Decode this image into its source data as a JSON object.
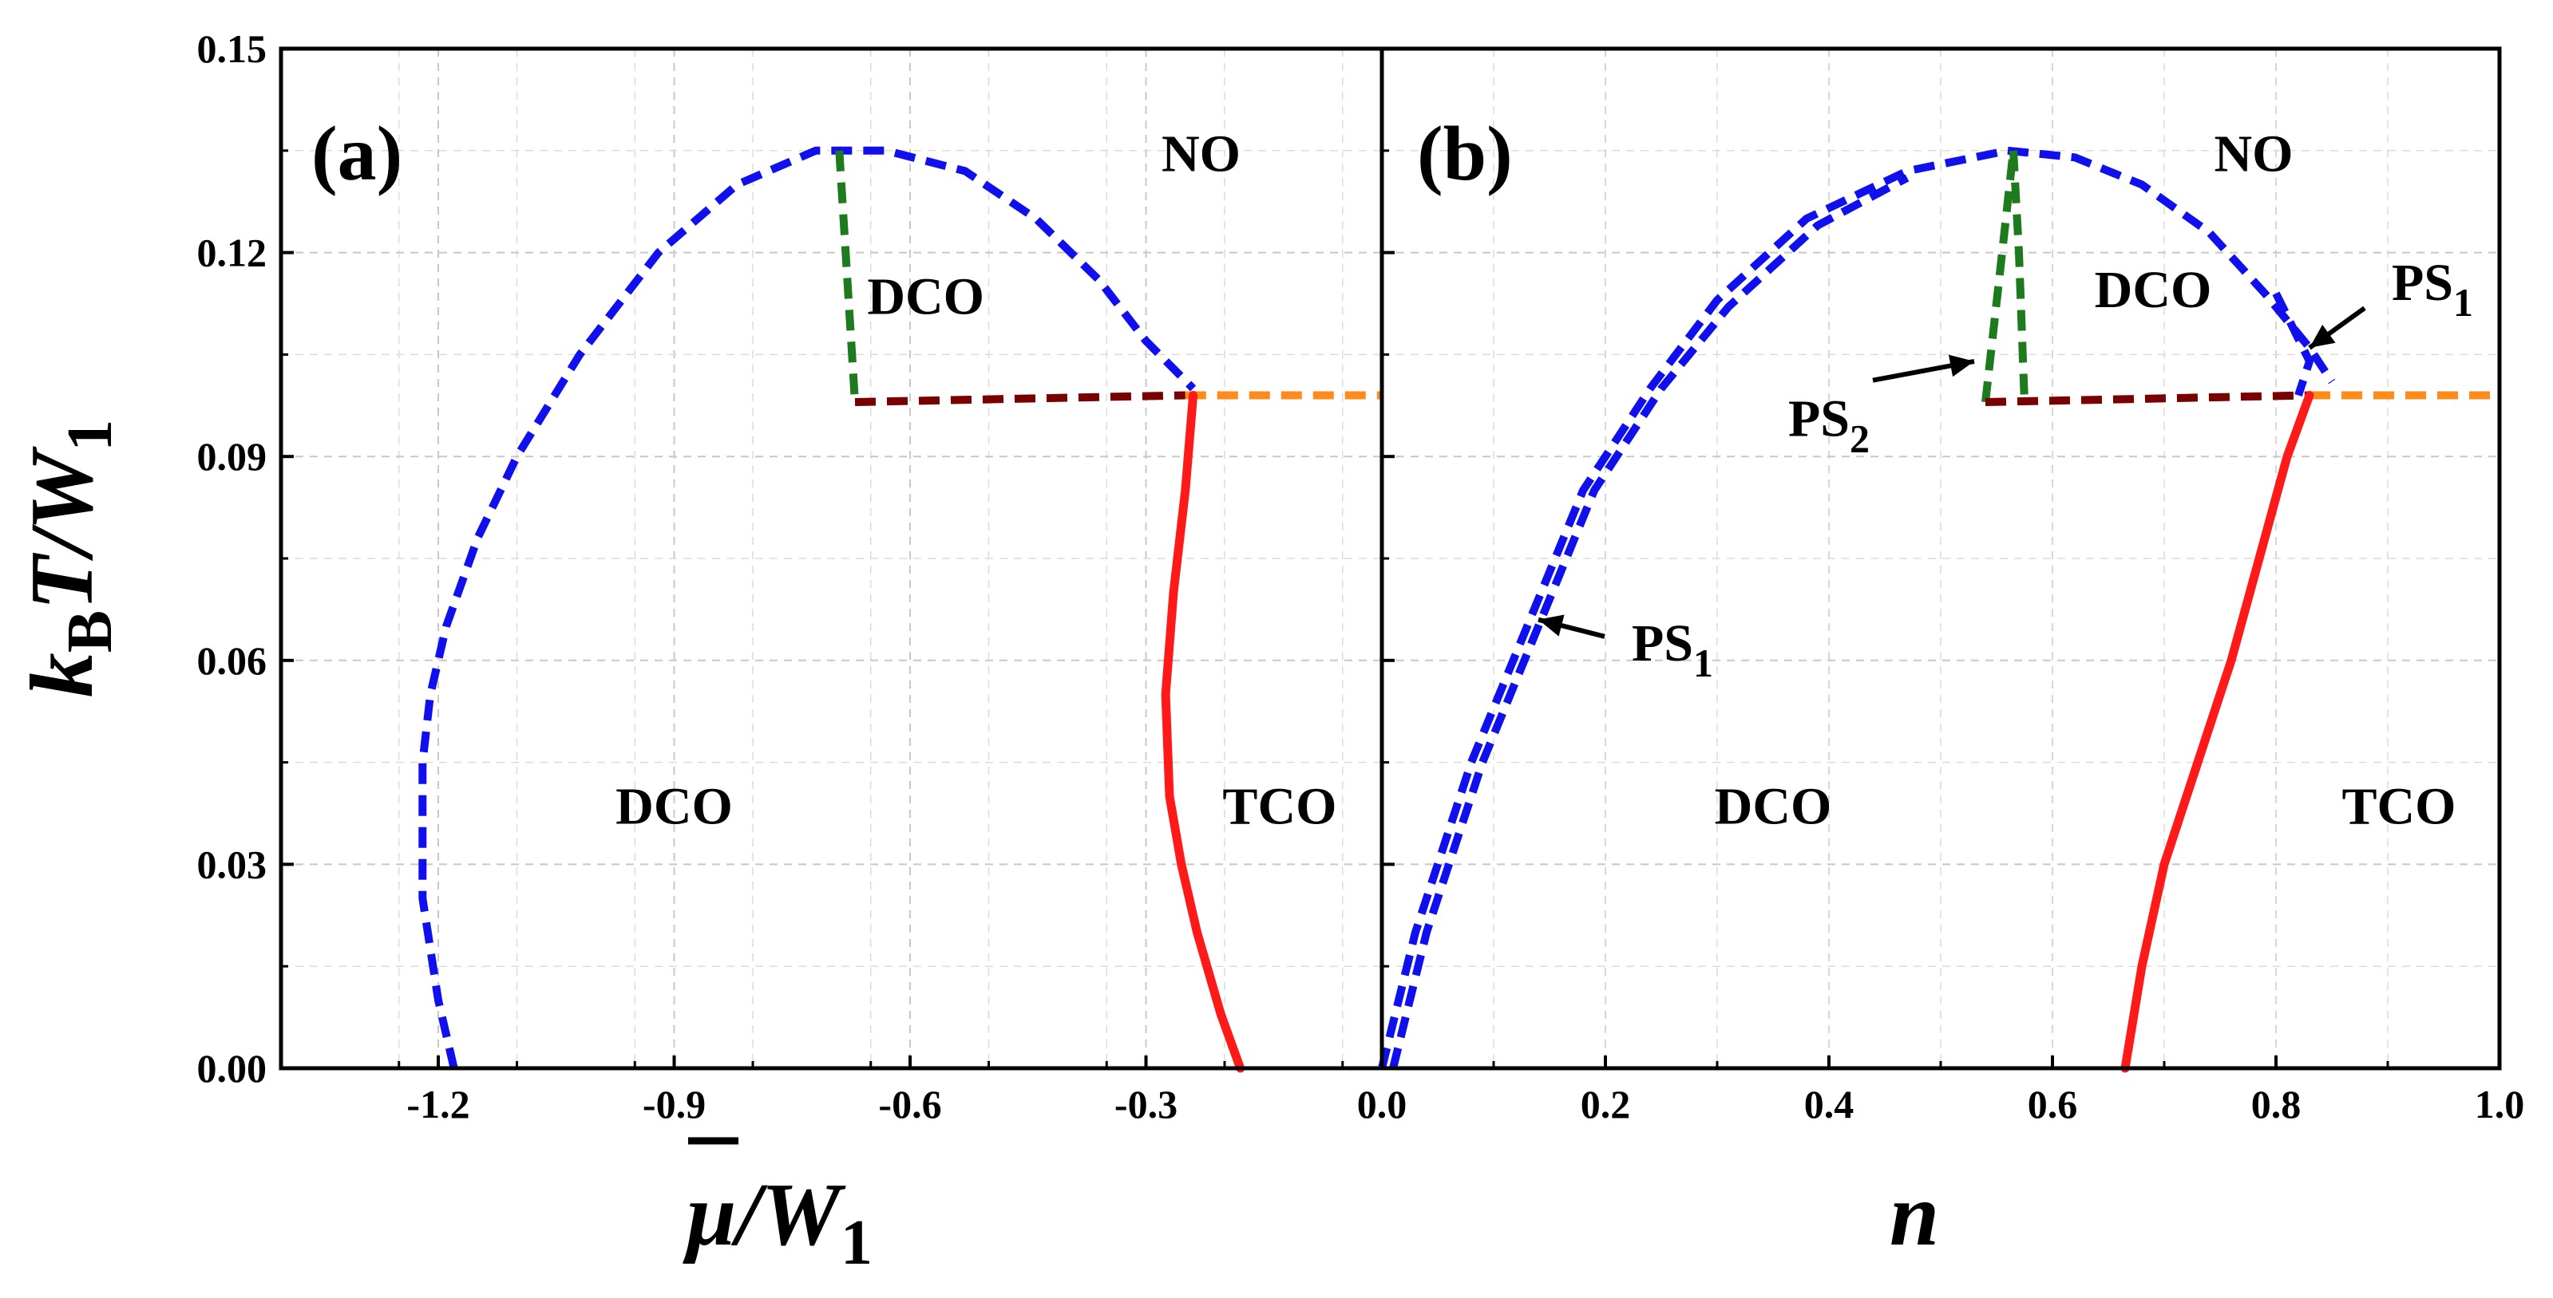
{
  "chart_data": [
    {
      "type": "line",
      "panel_label": "(a)",
      "xlim": [
        -1.4,
        0.0
      ],
      "ylim": [
        0.0,
        0.15
      ],
      "x_ticks": [
        "-1.2",
        "-0.9",
        "-0.6",
        "-0.3"
      ],
      "y_ticks": [
        "0.00",
        "0.03",
        "0.06",
        "0.09",
        "0.12",
        "0.15"
      ],
      "xlabel": {
        "symbol": "μ",
        "over": "/W",
        "sub": "1"
      },
      "ylabel": {
        "k": "k",
        "k_sub": "B",
        "rest": "T/W",
        "sub": "1"
      },
      "region_labels": [
        {
          "text": "NO",
          "x": -0.23,
          "y": 0.132
        },
        {
          "text": "DCO",
          "x": -0.58,
          "y": 0.111
        },
        {
          "text": "DCO",
          "x": -0.9,
          "y": 0.036
        },
        {
          "text": "TCO",
          "x": -0.13,
          "y": 0.036
        }
      ],
      "series": [
        {
          "name": "dome",
          "color": "#1010ee",
          "style": "dashed",
          "x": [
            -1.18,
            -1.2,
            -1.22,
            -1.22,
            -1.21,
            -1.19,
            -1.15,
            -1.1,
            -1.02,
            -0.92,
            -0.82,
            -0.72,
            -0.63,
            -0.53,
            -0.44,
            -0.36,
            -0.3,
            -0.24
          ],
          "y": [
            0.0,
            0.01,
            0.025,
            0.045,
            0.055,
            0.065,
            0.078,
            0.09,
            0.105,
            0.12,
            0.13,
            0.135,
            0.135,
            0.132,
            0.125,
            0.116,
            0.107,
            0.1
          ]
        },
        {
          "name": "DCO-NO vertical",
          "color": "#1d7a1d",
          "style": "dashed",
          "x": [
            -0.69,
            -0.67
          ],
          "y": [
            0.135,
            0.098
          ]
        },
        {
          "name": "DCO-TCO horizontal",
          "color": "#7a0000",
          "style": "dashed",
          "x": [
            -0.67,
            -0.25
          ],
          "y": [
            0.098,
            0.099
          ]
        },
        {
          "name": "TCO-NO horizontal",
          "color": "#ff8c1a",
          "style": "dashed",
          "x": [
            -0.25,
            0.0
          ],
          "y": [
            0.099,
            0.099
          ]
        },
        {
          "name": "DCO-TCO boundary",
          "color": "#ff1a1a",
          "style": "solid",
          "x": [
            -0.24,
            -0.25,
            -0.265,
            -0.275,
            -0.27,
            -0.255,
            -0.235,
            -0.205,
            -0.18
          ],
          "y": [
            0.099,
            0.085,
            0.07,
            0.055,
            0.04,
            0.03,
            0.02,
            0.008,
            0.0
          ]
        }
      ]
    },
    {
      "type": "line",
      "panel_label": "(b)",
      "xlim": [
        0.0,
        1.0
      ],
      "ylim": [
        0.0,
        0.15
      ],
      "x_ticks": [
        "0.0",
        "0.2",
        "0.4",
        "0.6",
        "0.8",
        "1.0"
      ],
      "y_ticks": [
        "0.00",
        "0.03",
        "0.06",
        "0.09",
        "0.12",
        "0.15"
      ],
      "xlabel": {
        "symbol": "n"
      },
      "region_labels": [
        {
          "text": "NO",
          "x": 0.78,
          "y": 0.132
        },
        {
          "text": "DCO",
          "x": 0.69,
          "y": 0.112
        },
        {
          "text": "DCO",
          "x": 0.35,
          "y": 0.036
        },
        {
          "text": "TCO",
          "x": 0.91,
          "y": 0.036
        }
      ],
      "annotations": [
        {
          "text": "PS",
          "sub": "1",
          "x": 0.26,
          "y": 0.06
        },
        {
          "text": "PS",
          "sub": "2",
          "x": 0.4,
          "y": 0.093
        },
        {
          "text": "PS",
          "sub": "1",
          "x": 0.94,
          "y": 0.113
        }
      ],
      "series": [
        {
          "name": "dome left",
          "color": "#1010ee",
          "style": "dashed",
          "x": [
            0.0,
            0.03,
            0.08,
            0.13,
            0.18,
            0.24,
            0.3,
            0.38,
            0.47,
            0.56
          ],
          "y": [
            0.0,
            0.02,
            0.045,
            0.065,
            0.085,
            0.1,
            0.113,
            0.125,
            0.132,
            0.135
          ]
        },
        {
          "name": "dome left inner",
          "color": "#1010ee",
          "style": "dashed",
          "x": [
            0.01,
            0.04,
            0.09,
            0.14,
            0.19,
            0.25,
            0.31,
            0.39,
            0.47
          ],
          "y": [
            0.0,
            0.02,
            0.045,
            0.065,
            0.085,
            0.1,
            0.112,
            0.124,
            0.131
          ]
        },
        {
          "name": "dome right",
          "color": "#1010ee",
          "style": "dashed",
          "x": [
            0.56,
            0.62,
            0.68,
            0.74,
            0.79,
            0.83,
            0.85
          ],
          "y": [
            0.135,
            0.134,
            0.13,
            0.123,
            0.114,
            0.106,
            0.101
          ]
        },
        {
          "name": "dome right inner",
          "color": "#1010ee",
          "style": "dashed",
          "x": [
            0.8,
            0.83,
            0.82
          ],
          "y": [
            0.114,
            0.104,
            0.099
          ]
        },
        {
          "name": "DCO-NO left",
          "color": "#1d7a1d",
          "style": "dashed",
          "x": [
            0.54,
            0.555,
            0.565
          ],
          "y": [
            0.098,
            0.12,
            0.135
          ]
        },
        {
          "name": "DCO-NO right",
          "color": "#1d7a1d",
          "style": "dashed",
          "x": [
            0.565,
            0.57,
            0.575
          ],
          "y": [
            0.135,
            0.12,
            0.098
          ]
        },
        {
          "name": "DCO-TCO horizontal",
          "color": "#7a0000",
          "style": "dashed",
          "x": [
            0.54,
            0.83
          ],
          "y": [
            0.098,
            0.099
          ]
        },
        {
          "name": "TCO-NO horizontal",
          "color": "#ff8c1a",
          "style": "dashed",
          "x": [
            0.83,
            1.0
          ],
          "y": [
            0.099,
            0.099
          ]
        },
        {
          "name": "DCO-TCO boundary",
          "color": "#ff1a1a",
          "style": "solid",
          "x": [
            0.665,
            0.68,
            0.7,
            0.73,
            0.76,
            0.79,
            0.81,
            0.83
          ],
          "y": [
            0.0,
            0.015,
            0.03,
            0.045,
            0.06,
            0.078,
            0.09,
            0.099
          ]
        }
      ]
    }
  ]
}
